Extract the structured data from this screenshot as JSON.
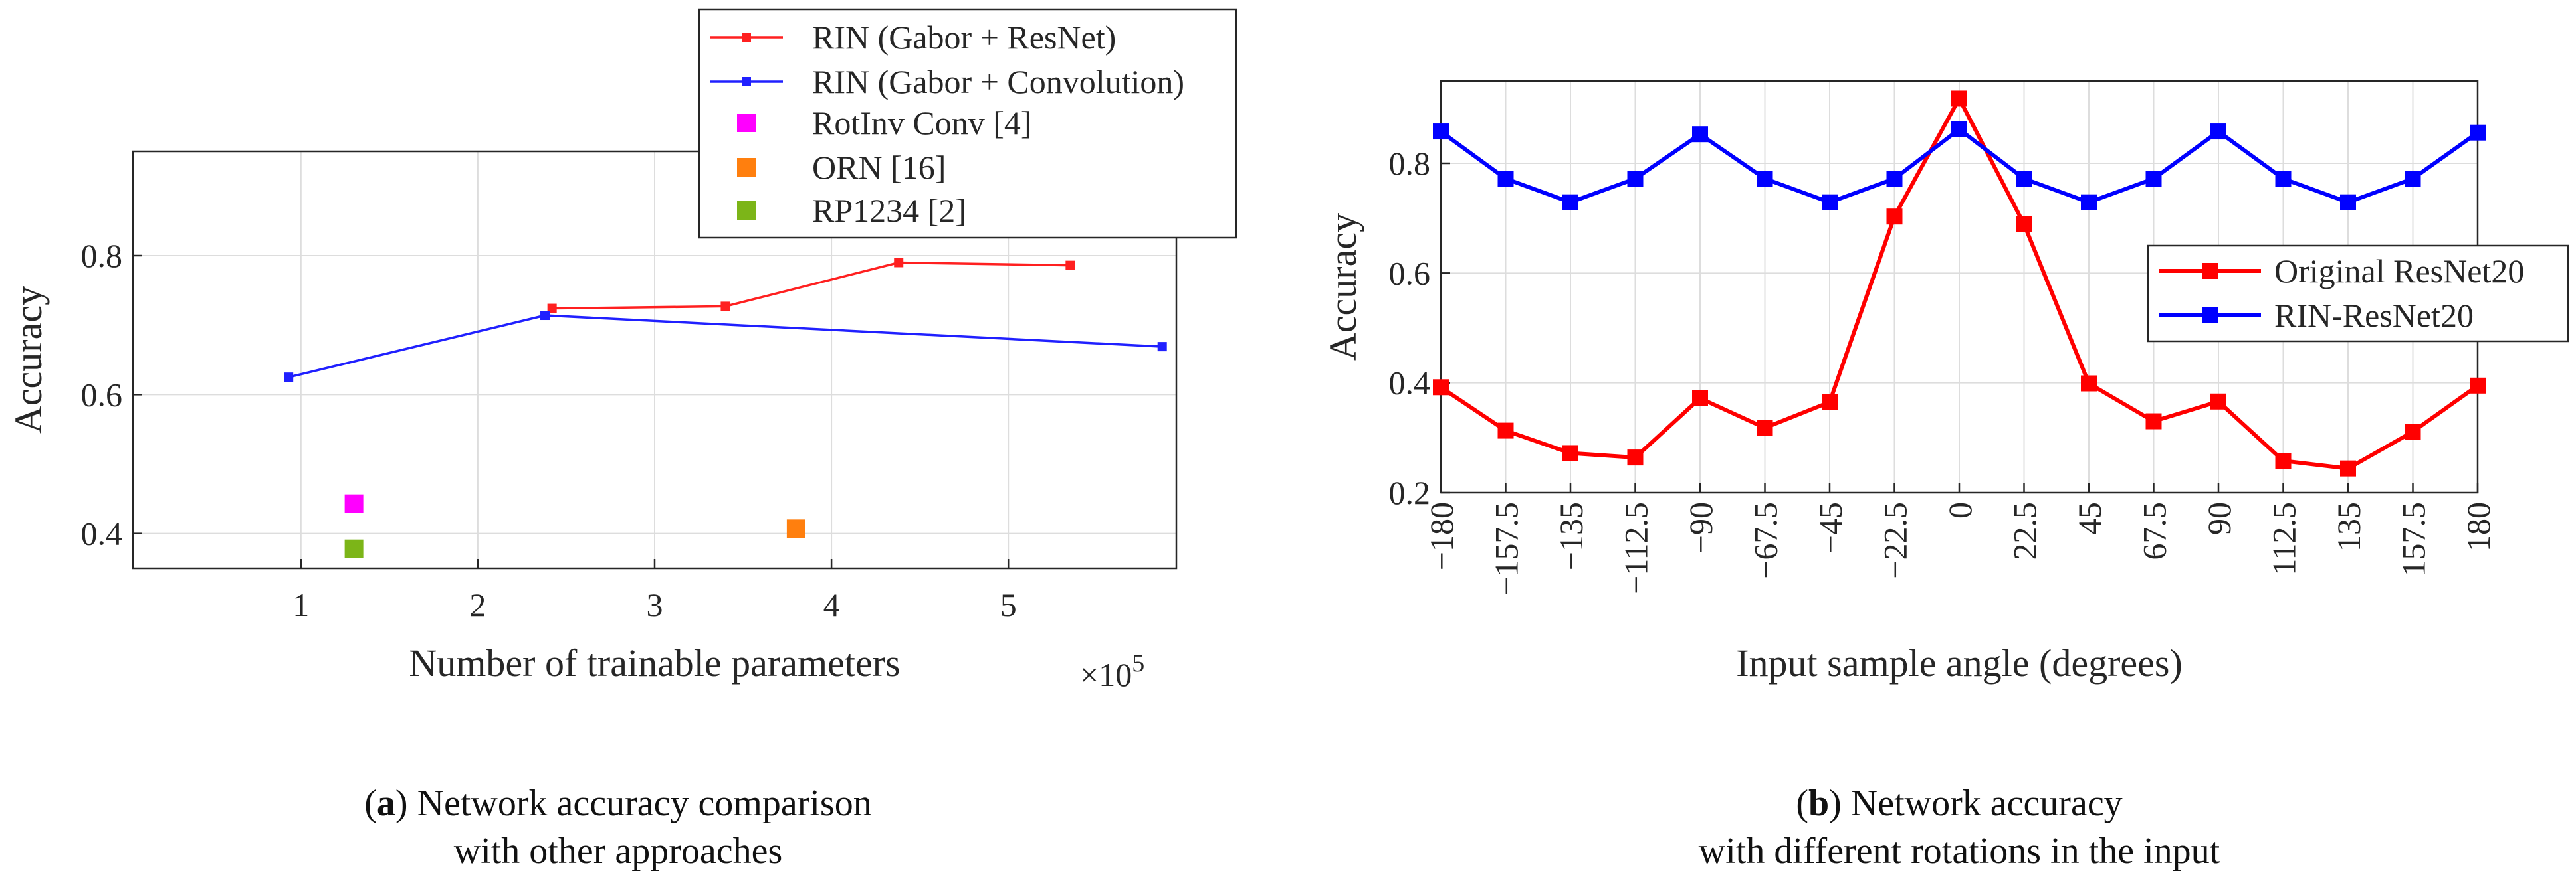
{
  "chart_data": [
    {
      "id": "a",
      "type": "line",
      "title": "",
      "xlabel": "Number of trainable parameters",
      "ylabel": "Accuracy",
      "x_exponent_label": "×10",
      "x_exponent_power": "5",
      "xlim": [
        0.05,
        5.95
      ],
      "ylim": [
        0.35,
        0.95
      ],
      "xticks": [
        1,
        2,
        3,
        4,
        5
      ],
      "xtick_labels": [
        "1",
        "2",
        "3",
        "4",
        "5"
      ],
      "yticks": [
        0.4,
        0.6,
        0.8
      ],
      "ytick_labels": [
        "0.4",
        "0.6",
        "0.8"
      ],
      "grid": true,
      "legend_position": "top-right",
      "series": [
        {
          "name": "RIN (Gabor + ResNet)",
          "color": "#ff2020",
          "marker": "square",
          "x": [
            2.42,
            3.4,
            4.38,
            5.35
          ],
          "y": [
            0.724,
            0.727,
            0.79,
            0.786
          ]
        },
        {
          "name": "RIN (Gabor + Convolution)",
          "color": "#2020ff",
          "marker": "square",
          "x": [
            0.93,
            2.38,
            5.87
          ],
          "y": [
            0.625,
            0.714,
            0.669
          ]
        }
      ],
      "points": [
        {
          "name": "RotInv Conv [4]",
          "color": "#ff00ff",
          "x": 1.3,
          "y": 0.443
        },
        {
          "name": "ORN [16]",
          "color": "#ff7f0e",
          "x": 3.8,
          "y": 0.407
        },
        {
          "name": "RP1234 [2]",
          "color": "#7cb518",
          "x": 1.3,
          "y": 0.378
        }
      ],
      "caption": {
        "label": "a",
        "line1": "Network accuracy comparison",
        "line2": "with other approaches"
      }
    },
    {
      "id": "b",
      "type": "line",
      "title": "",
      "xlabel": "Input sample angle (degrees)",
      "ylabel": "Accuracy",
      "xlim": [
        -180,
        180
      ],
      "ylim": [
        0.2,
        0.95
      ],
      "xticks": [
        -180,
        -157.5,
        -135,
        -112.5,
        -90,
        -67.5,
        -45,
        -22.5,
        0,
        22.5,
        45,
        67.5,
        90,
        112.5,
        135,
        157.5,
        180
      ],
      "xtick_labels": [
        "−180",
        "−157.5",
        "−135",
        "−112.5",
        "−90",
        "−67.5",
        "−45",
        "−22.5",
        "0",
        "22.5",
        "45",
        "67.5",
        "90",
        "112.5",
        "135",
        "157.5",
        "180"
      ],
      "yticks": [
        0.2,
        0.4,
        0.6,
        0.8
      ],
      "ytick_labels": [
        "0.2",
        "0.4",
        "0.6",
        "0.8"
      ],
      "grid": true,
      "legend_position": "right",
      "series": [
        {
          "name": "Original ResNet20",
          "color": "#ff0000",
          "marker": "square",
          "x": [
            -180,
            -157.5,
            -135,
            -112.5,
            -90,
            -67.5,
            -45,
            -22.5,
            0,
            22.5,
            45,
            67.5,
            90,
            112.5,
            135,
            157.5,
            180
          ],
          "y": [
            0.392,
            0.313,
            0.272,
            0.264,
            0.372,
            0.318,
            0.365,
            0.703,
            0.918,
            0.689,
            0.399,
            0.33,
            0.366,
            0.258,
            0.244,
            0.311,
            0.395
          ]
        },
        {
          "name": "RIN-ResNet20",
          "color": "#0000ff",
          "marker": "square",
          "x": [
            -180,
            -157.5,
            -135,
            -112.5,
            -90,
            -67.5,
            -45,
            -22.5,
            0,
            22.5,
            45,
            67.5,
            90,
            112.5,
            135,
            157.5,
            180
          ],
          "y": [
            0.858,
            0.772,
            0.729,
            0.772,
            0.853,
            0.772,
            0.729,
            0.772,
            0.862,
            0.772,
            0.729,
            0.772,
            0.858,
            0.772,
            0.729,
            0.772,
            0.856
          ]
        }
      ],
      "caption": {
        "label": "b",
        "line1": "Network accuracy",
        "line2": "with different rotations in the input"
      }
    }
  ]
}
